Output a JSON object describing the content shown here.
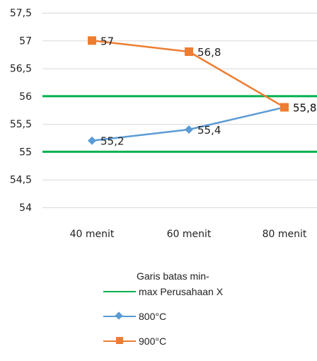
{
  "chart_data": {
    "type": "line",
    "categories": [
      "40 menit",
      "60 menit",
      "80 menit"
    ],
    "ylim": [
      54,
      57.5
    ],
    "yticks": [
      "54",
      "54,5",
      "55",
      "55,5",
      "56",
      "56,5",
      "57",
      "57,5"
    ],
    "ytick_values": [
      54,
      54.5,
      55,
      55.5,
      56,
      56.5,
      57,
      57.5
    ],
    "grid": true,
    "legend_position": "bottom",
    "series": [
      {
        "name": "800°C",
        "values": [
          55.2,
          55.4,
          55.8
        ],
        "labels": [
          "55,2",
          "55,4",
          "55,8"
        ],
        "color": "#5b9bd5",
        "marker": "diamond"
      },
      {
        "name": "900°C",
        "values": [
          57,
          56.8,
          55.8
        ],
        "labels": [
          "57",
          "56,8",
          "55,8"
        ],
        "color": "#ed7d31",
        "marker": "square"
      }
    ],
    "reference_lines": {
      "name_line1": "Garis batas min-",
      "name_line2": "max Perusahaan X",
      "values": [
        55,
        56
      ],
      "color": "#00b050"
    }
  }
}
